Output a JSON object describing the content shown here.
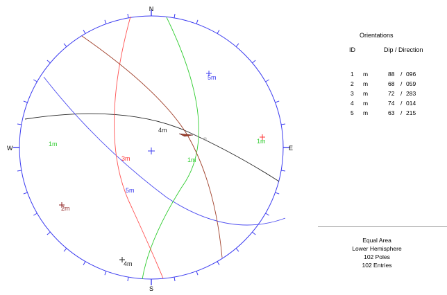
{
  "stereonet": {
    "north_label": "N",
    "south_label": "S",
    "east_label": "E",
    "west_label": "W",
    "circle_color": "#3a3af0",
    "poles": [
      {
        "label": "1m",
        "color": "#2ecc2e"
      },
      {
        "label": "2m",
        "color": "#8b1a1a"
      },
      {
        "label": "3m",
        "color": "#ff3030"
      },
      {
        "label": "4m",
        "color": "#222222"
      },
      {
        "label": "5m",
        "color": "#3a3af0"
      }
    ],
    "mean_labels": [
      {
        "label": "1m",
        "color": "#2ecc2e"
      },
      {
        "label": "3m",
        "color": "#ff3030"
      },
      {
        "label": "4m",
        "color": "#222222"
      },
      {
        "label": "5m",
        "color": "#3a3af0"
      }
    ],
    "planes": [
      {
        "name": "1m",
        "color": "#2ecc2e"
      },
      {
        "name": "2m",
        "color": "#a0402a"
      },
      {
        "name": "3m",
        "color": "#ff5050"
      },
      {
        "name": "4m",
        "color": "#222222"
      },
      {
        "name": "5m",
        "color": "#4a4af0"
      }
    ]
  },
  "panel": {
    "title": "Orientations",
    "col_id": "ID",
    "col_dipdir": "Dip / Direction",
    "rows": [
      {
        "num": "1",
        "set": "m",
        "dip": "88",
        "dir": "096"
      },
      {
        "num": "2",
        "set": "m",
        "dip": "68",
        "dir": "059"
      },
      {
        "num": "3",
        "set": "m",
        "dip": "72",
        "dir": "283"
      },
      {
        "num": "4",
        "set": "m",
        "dip": "74",
        "dir": "014"
      },
      {
        "num": "5",
        "set": "m",
        "dip": "63",
        "dir": "215"
      }
    ]
  },
  "footer": {
    "projection": "Equal Area",
    "hemisphere": "Lower Hemisphere",
    "poles": "102 Poles",
    "entries": "102 Entries"
  }
}
